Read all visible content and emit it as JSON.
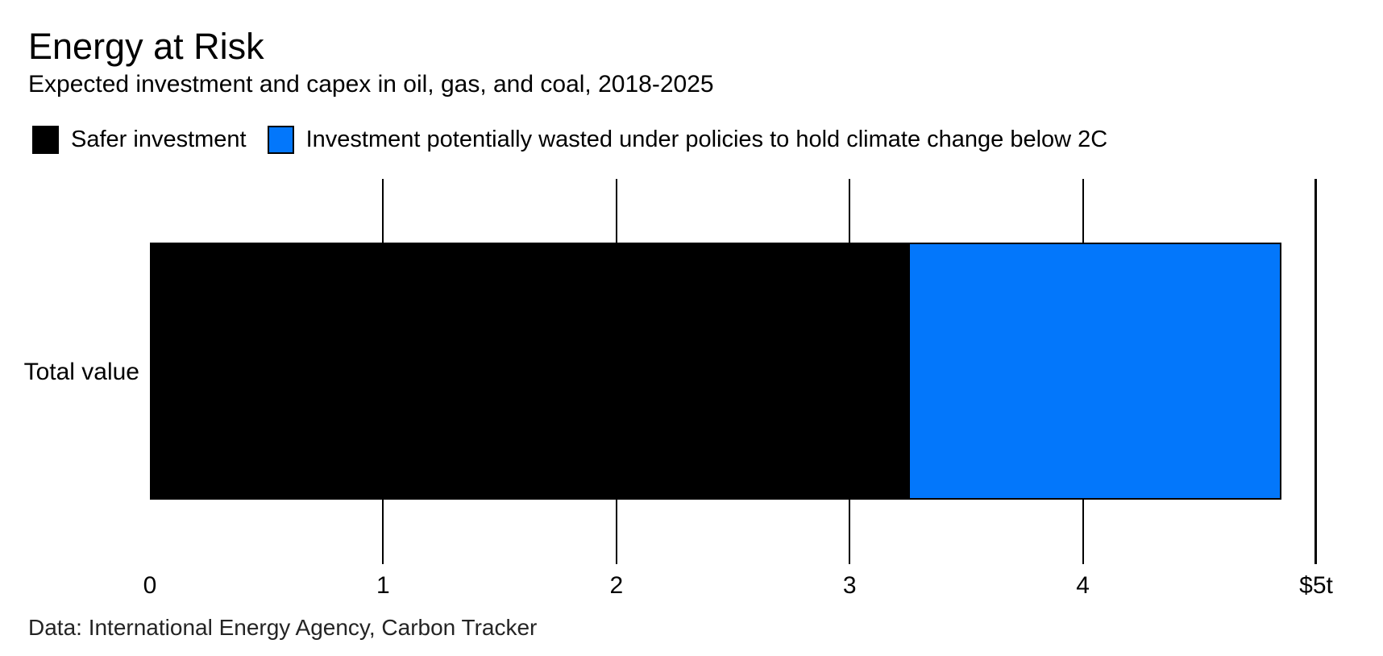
{
  "header": {
    "title": "Energy at Risk",
    "subtitle": "Expected investment and capex in oil, gas, and coal, 2018-2025"
  },
  "legend": {
    "items": [
      {
        "label": "Safer investment",
        "color": "#000000"
      },
      {
        "label": "Investment potentially wasted under policies to hold climate change below 2C",
        "color": "#0377fb"
      }
    ]
  },
  "chart_data": {
    "type": "bar",
    "orientation": "horizontal",
    "stacked": true,
    "title": "Energy at Risk",
    "subtitle": "Expected investment and capex in oil, gas, and coal, 2018-2025",
    "categories": [
      "Total value"
    ],
    "series": [
      {
        "name": "Safer investment",
        "color": "#000000",
        "values": [
          3.25
        ]
      },
      {
        "name": "Investment potentially wasted under policies to hold climate change below 2C",
        "color": "#0377fb",
        "values": [
          1.6
        ]
      }
    ],
    "xlim": [
      0,
      5
    ],
    "xticks": [
      0,
      1,
      2,
      3,
      4,
      5
    ],
    "xtick_labels": [
      "0",
      "1",
      "2",
      "3",
      "4",
      "$5t"
    ],
    "xlabel": "",
    "ylabel": "",
    "grid": false,
    "legend_position": "top"
  },
  "colors": {
    "background": "#ffffff",
    "bar_black": "#000000",
    "accent_blue": "#0377fb",
    "axis": "#000000"
  },
  "footer": {
    "source": "Data: International Energy Agency, Carbon Tracker"
  }
}
